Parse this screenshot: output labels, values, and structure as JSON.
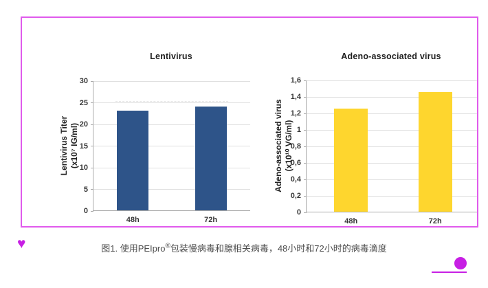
{
  "frame": {
    "border_color": "#e05aec"
  },
  "caption": {
    "prefix": "图1. 使用PEIpro",
    "registered_mark": "®",
    "suffix": "包装慢病毒和腺相关病毒，48小时和72小时的病毒滴度"
  },
  "decorations": {
    "heart_glyph": "♥",
    "accent_color": "#c71fe4"
  },
  "chart_data": [
    {
      "type": "bar",
      "title": "Lentivirus",
      "ylabel_lines": [
        "Lentivirus Titer",
        "(x10⁷ IG/ml)"
      ],
      "categories": [
        "48h",
        "72h"
      ],
      "values": [
        23,
        24
      ],
      "ylim": [
        0,
        30
      ],
      "ytick_values": [
        0,
        5,
        10,
        15,
        20,
        25,
        30
      ],
      "ytick_labels": [
        "0",
        "5",
        "10",
        "15",
        "20",
        "25",
        "30"
      ],
      "bar_color": "#2e5489",
      "grid": true,
      "legend": false,
      "ref_line": 25
    },
    {
      "type": "bar",
      "title": "Adeno-associated virus",
      "ylabel_lines": [
        "Adeno-associated virus",
        "(x10¹⁰ VG/ml)"
      ],
      "categories": [
        "48h",
        "72h"
      ],
      "values": [
        1.25,
        1.45
      ],
      "ylim": [
        0,
        1.6
      ],
      "ytick_values": [
        0,
        0.2,
        0.4,
        0.6,
        0.8,
        1,
        1.2,
        1.4,
        1.6
      ],
      "ytick_labels": [
        "0",
        "0,2",
        "0,4",
        "0,6",
        "0,8",
        "1",
        "1,2",
        "1,4",
        "1,6"
      ],
      "bar_color": "#fed62e",
      "grid": true,
      "legend": false,
      "ref_line": null
    }
  ]
}
